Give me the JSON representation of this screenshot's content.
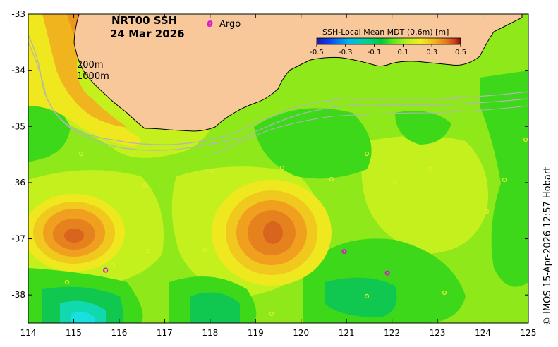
{
  "title": {
    "line1": "NRT00 SSH",
    "line2": "24 Mar 2026"
  },
  "legend": {
    "argo_symbol": "o",
    "argo_label": "Argo",
    "colorbar_title": "SSH-Local Mean MDT (0.6m) [m]",
    "colorbar_ticks": [
      "-0.5",
      "-0.3",
      "-0.1",
      "0.1",
      "0.3",
      "0.5"
    ],
    "colorbar_range": [
      -0.5,
      0.5
    ],
    "colorbar_colors": [
      "#1a1aa8",
      "#0a3cf0",
      "#00b4f0",
      "#00d296",
      "#00c83c",
      "#50e61e",
      "#b4f01e",
      "#f0f01e",
      "#f0b41e",
      "#e6781e",
      "#c83c1e",
      "#8c0a0a"
    ]
  },
  "contour_labels": {
    "depth1": "200m",
    "depth2": "1000m"
  },
  "credit": "© IMOS 15-Apr-2026 12:57 Hobart",
  "axes": {
    "x_ticks": [
      "114",
      "115",
      "116",
      "117",
      "118",
      "119",
      "120",
      "121",
      "122",
      "123",
      "124",
      "125"
    ],
    "y_ticks": [
      "-33",
      "-34",
      "-35",
      "-36",
      "-37",
      "-38"
    ],
    "x_range": [
      114,
      125
    ],
    "y_range": [
      -38.5,
      -33
    ]
  },
  "colors": {
    "land": "#f9c89a",
    "coast": "#000000",
    "bathy": "#b4b4b4",
    "argo": "#d81bc8",
    "drifter": "#e0f030"
  },
  "argo_floats": [
    {
      "lon": 118.0,
      "lat": -33.15
    },
    {
      "lon": 115.7,
      "lat": -37.55
    },
    {
      "lon": 120.95,
      "lat": -37.22
    },
    {
      "lon": 121.9,
      "lat": -37.6
    }
  ]
}
